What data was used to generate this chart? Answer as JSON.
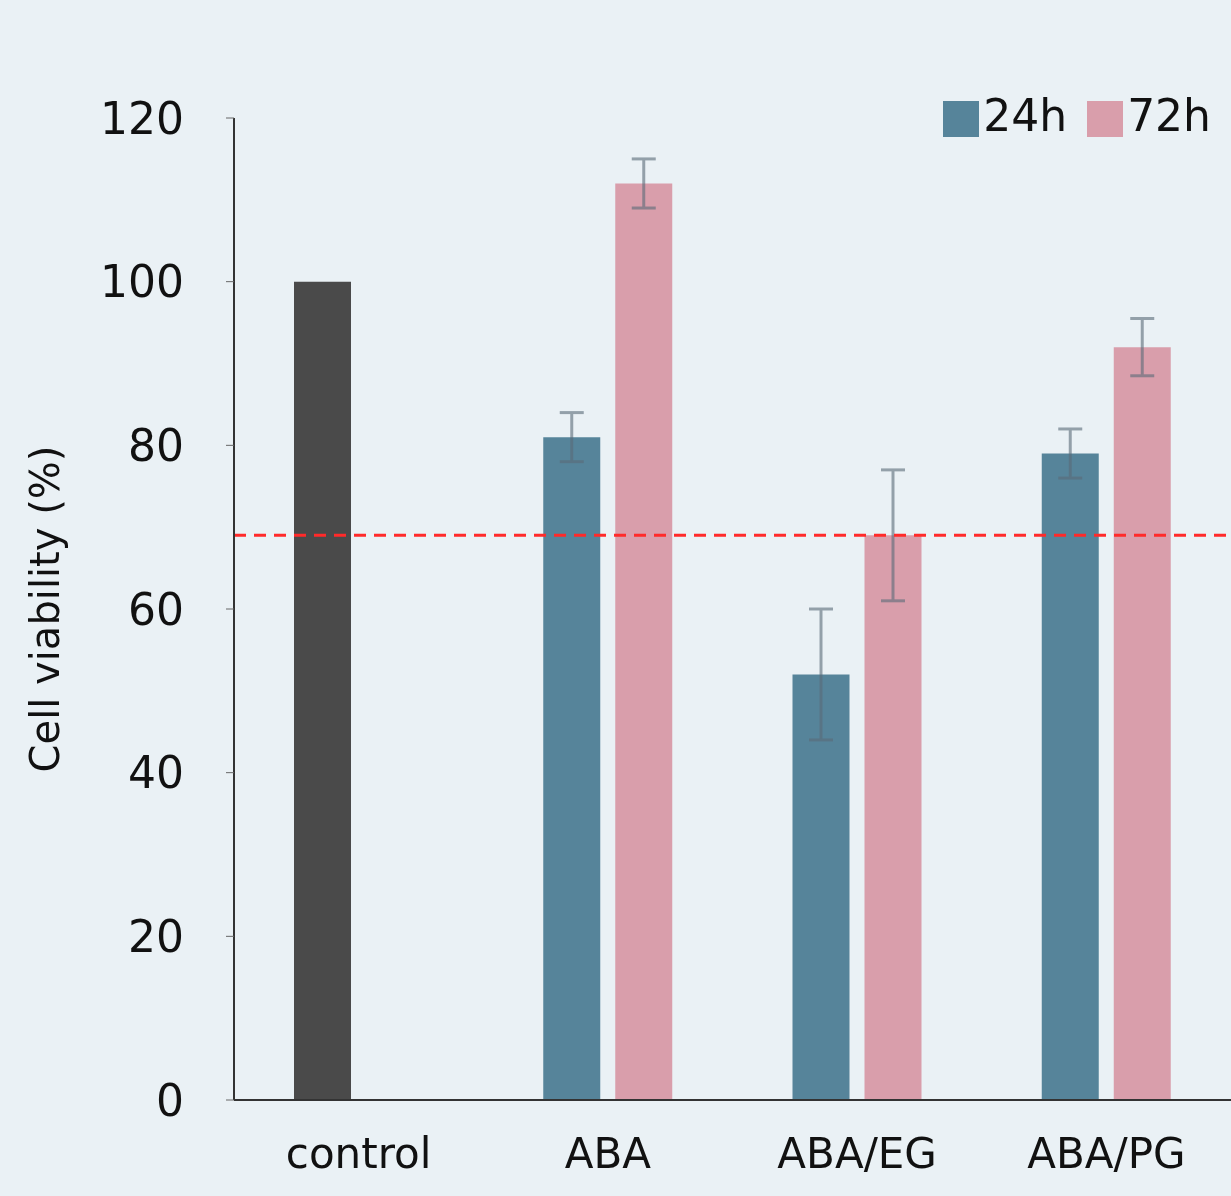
{
  "chart_data": {
    "type": "bar",
    "ylabel": "Cell viability (%)",
    "categories": [
      "control",
      "ABA",
      "ABA/EG",
      "ABA/PG"
    ],
    "series": [
      {
        "name": "24h",
        "color": "#56849a",
        "colors": [
          "#4a4a4a",
          "#56849a",
          "#56849a",
          "#56849a"
        ],
        "values": [
          100,
          81,
          52,
          79
        ],
        "errors": [
          null,
          3,
          8,
          3
        ]
      },
      {
        "name": "72h",
        "color": "#d99eab",
        "values": [
          null,
          112,
          69,
          92
        ],
        "errors": [
          null,
          3,
          8,
          3.5
        ]
      }
    ],
    "ylim": [
      0,
      120
    ],
    "yticks": [
      0,
      20,
      40,
      60,
      80,
      100,
      120
    ],
    "ref_lines": [
      {
        "axis": "y",
        "value": 69,
        "color": "#ff2a2a",
        "line_style": "dashed"
      }
    ],
    "legend": "top right",
    "grid": false
  }
}
